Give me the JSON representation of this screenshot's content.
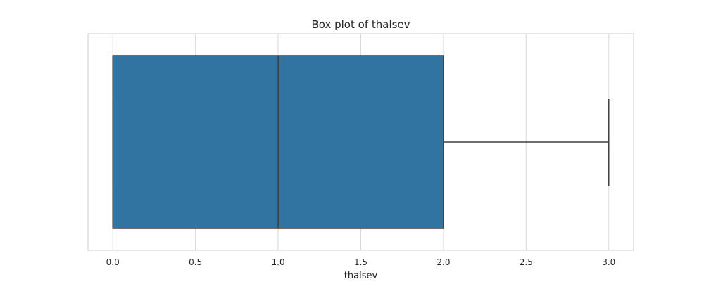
{
  "chart_data": {
    "type": "box",
    "title": "Box plot of thalsev",
    "xlabel": "thalsev",
    "ylabel": "",
    "xlim": [
      -0.15,
      3.15
    ],
    "ticks": [
      0.0,
      0.5,
      1.0,
      1.5,
      2.0,
      2.5,
      3.0
    ],
    "tick_labels": [
      "0.0",
      "0.5",
      "1.0",
      "1.5",
      "2.0",
      "2.5",
      "3.0"
    ],
    "grid": true,
    "box": {
      "min": 0.0,
      "q1": 0.0,
      "median": 1.0,
      "q3": 2.0,
      "max": 3.0
    },
    "colors": {
      "box_fill": "#3274a1",
      "box_edge": "#3f3f3f",
      "grid": "#d9d9d9",
      "frame": "#cccccc",
      "text": "#262626"
    }
  }
}
